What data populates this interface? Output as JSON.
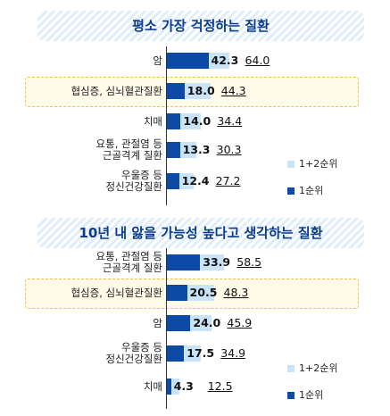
{
  "chart_data": [
    {
      "type": "bar",
      "title": "평소 가장 걱정하는 질환",
      "categories": [
        [
          "암"
        ],
        [
          "협심증, 심뇌혈관질환"
        ],
        [
          "치매"
        ],
        [
          "요통, 관절염 등",
          "근골격계 질환"
        ],
        [
          "우울증 등",
          "정신건강질환"
        ]
      ],
      "series": [
        {
          "name": "1+2순위",
          "values": [
            64.0,
            44.3,
            34.4,
            30.3,
            27.2
          ]
        },
        {
          "name": "1순위",
          "values": [
            42.3,
            18.0,
            14.0,
            13.3,
            12.4
          ]
        }
      ],
      "highlight_index": 1
    },
    {
      "type": "bar",
      "title": "10년 내 앓을 가능성 높다고 생각하는 질환",
      "categories": [
        [
          "요통, 관절염 등",
          "근골격계 질환"
        ],
        [
          "협심증, 심뇌혈관질환"
        ],
        [
          "암"
        ],
        [
          "우울증 등",
          "정신건강질환"
        ],
        [
          "치매"
        ]
      ],
      "series": [
        {
          "name": "1+2순위",
          "values": [
            58.5,
            48.3,
            45.9,
            34.9,
            12.5
          ]
        },
        {
          "name": "1순위",
          "values": [
            33.9,
            20.5,
            24.0,
            17.5,
            4.3
          ]
        }
      ],
      "highlight_index": 1
    }
  ],
  "legend": {
    "total_label": "1+2순위",
    "first_label": "1순위"
  },
  "colors": {
    "total": "#c9e3f8",
    "first": "#0c4aa6",
    "title": "#0a3d8c",
    "highlight_border": "#f2c14e"
  }
}
